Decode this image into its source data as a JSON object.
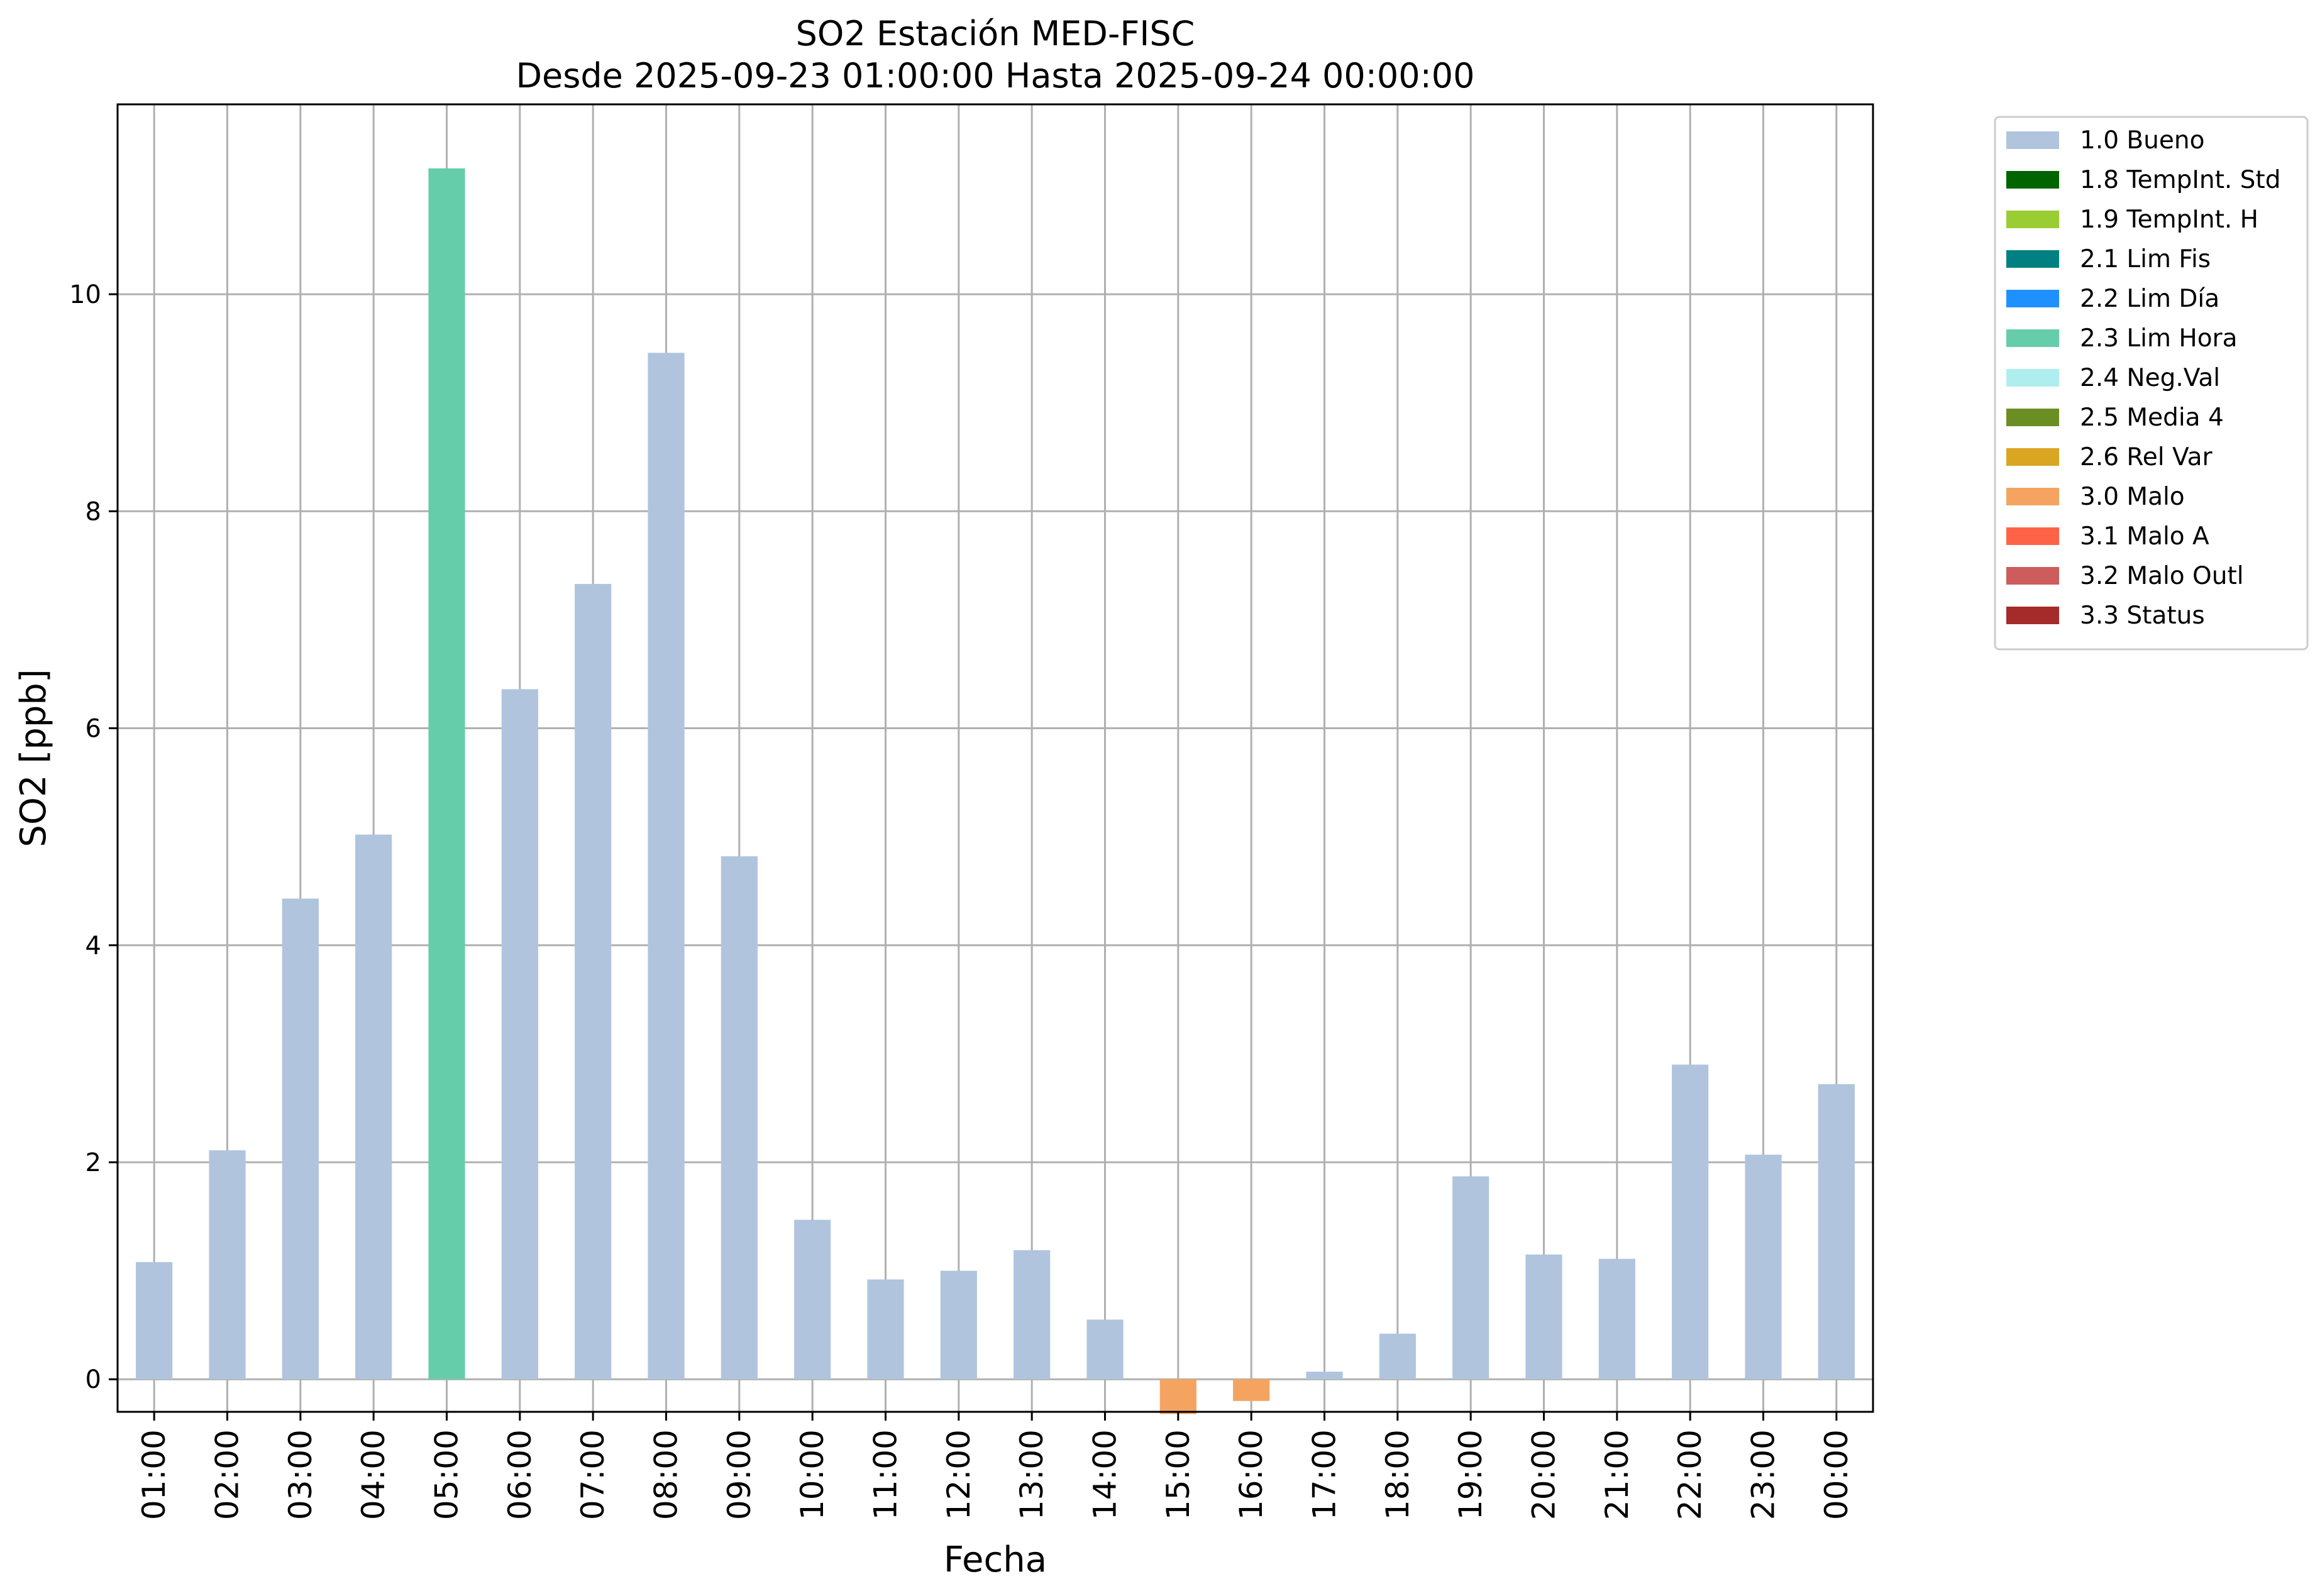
{
  "chart_data": {
    "type": "bar",
    "title": "SO2 Estación MED-FISC",
    "subtitle": "Desde 2025-09-23 01:00:00 Hasta 2025-09-24 00:00:00",
    "xlabel": "Fecha",
    "ylabel": "SO2 [ppb]",
    "categories": [
      "01:00",
      "02:00",
      "03:00",
      "04:00",
      "05:00",
      "06:00",
      "07:00",
      "08:00",
      "09:00",
      "10:00",
      "11:00",
      "12:00",
      "13:00",
      "14:00",
      "15:00",
      "16:00",
      "17:00",
      "18:00",
      "19:00",
      "20:00",
      "21:00",
      "22:00",
      "23:00",
      "00:00"
    ],
    "values": [
      1.08,
      2.11,
      4.43,
      5.02,
      11.16,
      6.36,
      7.33,
      9.46,
      4.82,
      1.47,
      0.92,
      1.0,
      1.19,
      0.55,
      -0.32,
      -0.2,
      0.07,
      0.42,
      1.87,
      1.15,
      1.11,
      2.9,
      2.07,
      2.72
    ],
    "flags": [
      "1.0 Bueno",
      "1.0 Bueno",
      "1.0 Bueno",
      "1.0 Bueno",
      "2.3 Lim Hora",
      "1.0 Bueno",
      "1.0 Bueno",
      "1.0 Bueno",
      "1.0 Bueno",
      "1.0 Bueno",
      "1.0 Bueno",
      "1.0 Bueno",
      "1.0 Bueno",
      "1.0 Bueno",
      "3.0 Malo",
      "3.0 Malo",
      "1.0 Bueno",
      "1.0 Bueno",
      "1.0 Bueno",
      "1.0 Bueno",
      "1.0 Bueno",
      "1.0 Bueno",
      "1.0 Bueno",
      "1.0 Bueno"
    ],
    "ylim": [
      -0.3,
      11.75
    ],
    "yticks": [
      0,
      2,
      4,
      6,
      8,
      10
    ],
    "grid": true,
    "legend_position": "outside-top-right",
    "legend": [
      {
        "label": "1.0 Bueno",
        "color": "#b0c4de"
      },
      {
        "label": "1.8 TempInt. Std",
        "color": "#006400"
      },
      {
        "label": "1.9 TempInt. H",
        "color": "#9acd32"
      },
      {
        "label": "2.1 Lim Fis",
        "color": "#008080"
      },
      {
        "label": "2.2 Lim Día",
        "color": "#1e90ff"
      },
      {
        "label": "2.3 Lim Hora",
        "color": "#66cdaa"
      },
      {
        "label": "2.4 Neg.Val",
        "color": "#afeeee"
      },
      {
        "label": "2.5 Media 4",
        "color": "#6b8e23"
      },
      {
        "label": "2.6 Rel Var",
        "color": "#daa520"
      },
      {
        "label": "3.0 Malo",
        "color": "#f4a460"
      },
      {
        "label": "3.1 Malo A",
        "color": "#ff6347"
      },
      {
        "label": "3.2 Malo Outl",
        "color": "#cd5c5c"
      },
      {
        "label": "3.3 Status",
        "color": "#a52a2a"
      }
    ]
  }
}
